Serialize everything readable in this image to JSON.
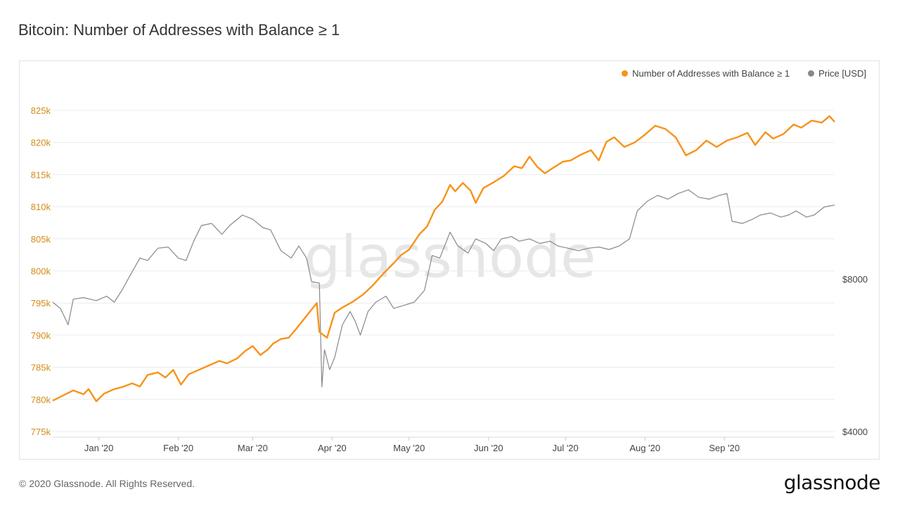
{
  "title": "Bitcoin: Number of Addresses with Balance ≥ 1",
  "footer": {
    "copyright": "© 2020 Glassnode. All Rights Reserved.",
    "logo": "glassnode"
  },
  "watermark": "glassnode",
  "colors": {
    "addresses": "#f7931a",
    "price": "#888888",
    "grid": "#ececec"
  },
  "chart_data": {
    "type": "line",
    "legend_position": "top-right",
    "grid": true,
    "x_tick_labels": [
      "Jan '20",
      "Feb '20",
      "Mar '20",
      "Apr '20",
      "May '20",
      "Jun '20",
      "Jul '20",
      "Aug '20",
      "Sep '20"
    ],
    "y_left": {
      "ticks": [
        775000,
        780000,
        785000,
        790000,
        795000,
        800000,
        805000,
        810000,
        815000,
        820000,
        825000
      ],
      "tick_labels": [
        "775k",
        "780k",
        "785k",
        "790k",
        "795k",
        "800k",
        "805k",
        "810k",
        "815k",
        "820k",
        "825k"
      ],
      "range": [
        775000,
        826000
      ]
    },
    "y_right": {
      "scale": "log",
      "ticks": [
        4000,
        8000
      ],
      "tick_labels": [
        "$4000",
        "$8000"
      ]
    },
    "series": [
      {
        "name": "Number of Addresses with Balance ≥ 1",
        "axis": "left",
        "points": [
          [
            "2019-12-14",
            779800
          ],
          [
            "2019-12-18",
            780600
          ],
          [
            "2019-12-22",
            781400
          ],
          [
            "2019-12-26",
            780800
          ],
          [
            "2019-12-28",
            781600
          ],
          [
            "2019-12-31",
            779700
          ],
          [
            "2020-01-03",
            780900
          ],
          [
            "2020-01-07",
            781600
          ],
          [
            "2020-01-10",
            781900
          ],
          [
            "2020-01-14",
            782500
          ],
          [
            "2020-01-17",
            782000
          ],
          [
            "2020-01-20",
            783800
          ],
          [
            "2020-01-24",
            784200
          ],
          [
            "2020-01-27",
            783400
          ],
          [
            "2020-01-30",
            784600
          ],
          [
            "2020-02-02",
            782300
          ],
          [
            "2020-02-05",
            783900
          ],
          [
            "2020-02-09",
            784600
          ],
          [
            "2020-02-13",
            785300
          ],
          [
            "2020-02-17",
            786000
          ],
          [
            "2020-02-20",
            785600
          ],
          [
            "2020-02-24",
            786400
          ],
          [
            "2020-02-27",
            787500
          ],
          [
            "2020-03-01",
            788300
          ],
          [
            "2020-03-04",
            786900
          ],
          [
            "2020-03-07",
            787800
          ],
          [
            "2020-03-09",
            788700
          ],
          [
            "2020-03-12",
            789400
          ],
          [
            "2020-03-15",
            789600
          ],
          [
            "2020-03-18",
            791000
          ],
          [
            "2020-03-21",
            792500
          ],
          [
            "2020-03-23",
            793500
          ],
          [
            "2020-03-25",
            794500
          ],
          [
            "2020-03-26",
            795000
          ],
          [
            "2020-03-27",
            790500
          ],
          [
            "2020-03-30",
            789600
          ],
          [
            "2020-04-02",
            793500
          ],
          [
            "2020-04-05",
            794300
          ],
          [
            "2020-04-09",
            795200
          ],
          [
            "2020-04-13",
            796300
          ],
          [
            "2020-04-17",
            797800
          ],
          [
            "2020-04-21",
            799600
          ],
          [
            "2020-04-25",
            801200
          ],
          [
            "2020-04-28",
            802500
          ],
          [
            "2020-05-01",
            803300
          ],
          [
            "2020-05-05",
            805700
          ],
          [
            "2020-05-08",
            806900
          ],
          [
            "2020-05-11",
            809500
          ],
          [
            "2020-05-14",
            810800
          ],
          [
            "2020-05-17",
            813400
          ],
          [
            "2020-05-19",
            812400
          ],
          [
            "2020-05-22",
            813700
          ],
          [
            "2020-05-25",
            812500
          ],
          [
            "2020-05-27",
            810600
          ],
          [
            "2020-05-30",
            812900
          ],
          [
            "2020-06-03",
            813800
          ],
          [
            "2020-06-07",
            814800
          ],
          [
            "2020-06-11",
            816300
          ],
          [
            "2020-06-14",
            816000
          ],
          [
            "2020-06-17",
            817800
          ],
          [
            "2020-06-20",
            816200
          ],
          [
            "2020-06-23",
            815200
          ],
          [
            "2020-06-26",
            816000
          ],
          [
            "2020-06-30",
            817000
          ],
          [
            "2020-07-03",
            817200
          ],
          [
            "2020-07-07",
            818100
          ],
          [
            "2020-07-11",
            818800
          ],
          [
            "2020-07-14",
            817200
          ],
          [
            "2020-07-17",
            820100
          ],
          [
            "2020-07-20",
            820800
          ],
          [
            "2020-07-24",
            819300
          ],
          [
            "2020-07-28",
            820000
          ],
          [
            "2020-08-01",
            821200
          ],
          [
            "2020-08-05",
            822600
          ],
          [
            "2020-08-09",
            822100
          ],
          [
            "2020-08-13",
            820800
          ],
          [
            "2020-08-17",
            818000
          ],
          [
            "2020-08-21",
            818800
          ],
          [
            "2020-08-25",
            820300
          ],
          [
            "2020-08-29",
            819300
          ],
          [
            "2020-09-02",
            820300
          ],
          [
            "2020-09-06",
            820800
          ],
          [
            "2020-09-10",
            821500
          ],
          [
            "2020-09-13",
            819600
          ],
          [
            "2020-09-17",
            821600
          ],
          [
            "2020-09-20",
            820600
          ],
          [
            "2020-09-24",
            821300
          ],
          [
            "2020-09-28",
            822800
          ],
          [
            "2020-10-01",
            822300
          ],
          [
            "2020-10-05",
            823400
          ],
          [
            "2020-10-09",
            823100
          ],
          [
            "2020-10-12",
            824100
          ],
          [
            "2020-10-14",
            823200
          ]
        ]
      },
      {
        "name": "Price [USD]",
        "axis": "right",
        "points": [
          [
            "2019-12-14",
            7200
          ],
          [
            "2019-12-17",
            7000
          ],
          [
            "2019-12-20",
            6500
          ],
          [
            "2019-12-22",
            7300
          ],
          [
            "2019-12-26",
            7350
          ],
          [
            "2019-12-31",
            7250
          ],
          [
            "2020-01-04",
            7400
          ],
          [
            "2020-01-07",
            7200
          ],
          [
            "2020-01-10",
            7600
          ],
          [
            "2020-01-13",
            8100
          ],
          [
            "2020-01-17",
            8800
          ],
          [
            "2020-01-20",
            8700
          ],
          [
            "2020-01-24",
            9200
          ],
          [
            "2020-01-28",
            9250
          ],
          [
            "2020-02-01",
            8800
          ],
          [
            "2020-02-04",
            8700
          ],
          [
            "2020-02-07",
            9500
          ],
          [
            "2020-02-10",
            10200
          ],
          [
            "2020-02-14",
            10300
          ],
          [
            "2020-02-18",
            9800
          ],
          [
            "2020-02-21",
            10200
          ],
          [
            "2020-02-26",
            10700
          ],
          [
            "2020-03-01",
            10500
          ],
          [
            "2020-03-05",
            10100
          ],
          [
            "2020-03-08",
            10000
          ],
          [
            "2020-03-12",
            9100
          ],
          [
            "2020-03-16",
            8800
          ],
          [
            "2020-03-19",
            9300
          ],
          [
            "2020-03-22",
            8800
          ],
          [
            "2020-03-24",
            7900
          ],
          [
            "2020-03-27",
            7850
          ],
          [
            "2020-03-28",
            4900
          ],
          [
            "2020-03-29",
            5800
          ],
          [
            "2020-03-31",
            5300
          ],
          [
            "2020-04-02",
            5600
          ],
          [
            "2020-04-05",
            6500
          ],
          [
            "2020-04-08",
            6900
          ],
          [
            "2020-04-10",
            6600
          ],
          [
            "2020-04-12",
            6200
          ],
          [
            "2020-04-15",
            6900
          ],
          [
            "2020-04-18",
            7200
          ],
          [
            "2020-04-22",
            7400
          ],
          [
            "2020-04-25",
            7000
          ],
          [
            "2020-04-29",
            7100
          ],
          [
            "2020-05-03",
            7200
          ],
          [
            "2020-05-07",
            7600
          ],
          [
            "2020-05-10",
            8900
          ],
          [
            "2020-05-13",
            8800
          ],
          [
            "2020-05-17",
            9900
          ],
          [
            "2020-05-20",
            9300
          ],
          [
            "2020-05-24",
            9000
          ],
          [
            "2020-05-27",
            9600
          ],
          [
            "2020-05-31",
            9400
          ],
          [
            "2020-06-03",
            9100
          ],
          [
            "2020-06-06",
            9600
          ],
          [
            "2020-06-10",
            9700
          ],
          [
            "2020-06-13",
            9500
          ],
          [
            "2020-06-17",
            9600
          ],
          [
            "2020-06-21",
            9400
          ],
          [
            "2020-06-25",
            9500
          ],
          [
            "2020-06-28",
            9300
          ],
          [
            "2020-07-02",
            9200
          ],
          [
            "2020-07-06",
            9100
          ],
          [
            "2020-07-10",
            9200
          ],
          [
            "2020-07-14",
            9250
          ],
          [
            "2020-07-18",
            9150
          ],
          [
            "2020-07-22",
            9300
          ],
          [
            "2020-07-26",
            9600
          ],
          [
            "2020-07-29",
            10900
          ],
          [
            "2020-08-02",
            11400
          ],
          [
            "2020-08-06",
            11700
          ],
          [
            "2020-08-10",
            11500
          ],
          [
            "2020-08-14",
            11800
          ],
          [
            "2020-08-18",
            12000
          ],
          [
            "2020-08-22",
            11600
          ],
          [
            "2020-08-26",
            11500
          ],
          [
            "2020-08-30",
            11700
          ],
          [
            "2020-09-02",
            11800
          ],
          [
            "2020-09-04",
            10400
          ],
          [
            "2020-09-08",
            10300
          ],
          [
            "2020-09-12",
            10500
          ],
          [
            "2020-09-15",
            10700
          ],
          [
            "2020-09-19",
            10800
          ],
          [
            "2020-09-23",
            10600
          ],
          [
            "2020-09-26",
            10700
          ],
          [
            "2020-09-29",
            10900
          ],
          [
            "2020-10-03",
            10600
          ],
          [
            "2020-10-06",
            10700
          ],
          [
            "2020-10-10",
            11100
          ],
          [
            "2020-10-14",
            11200
          ]
        ]
      }
    ]
  }
}
